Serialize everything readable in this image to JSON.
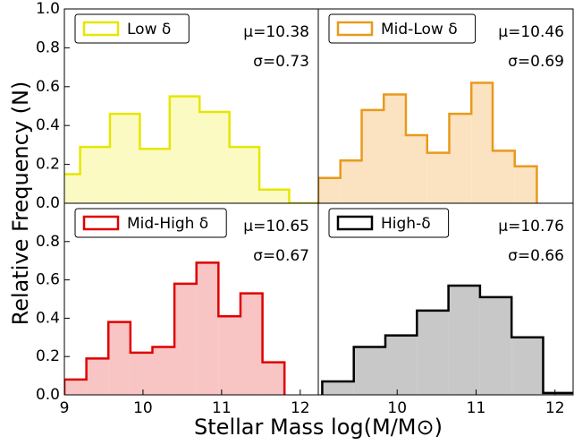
{
  "ylabel": "Relative Frequency (N)",
  "xlabel": "Stellar Mass log(M/M⊙)",
  "chart_data": [
    {
      "type": "histogram",
      "name": "Low δ",
      "color": "#e6e600",
      "fill": "#fafac2",
      "annotations": [
        "μ=10.38",
        "σ=0.73"
      ],
      "bins": [
        8.82,
        9.2,
        9.58,
        9.96,
        10.34,
        10.72,
        11.1,
        11.48,
        11.86,
        12.24
      ],
      "values": [
        0.15,
        0.29,
        0.46,
        0.28,
        0.55,
        0.47,
        0.29,
        0.07,
        0.0
      ],
      "xlim": [
        9,
        12.23
      ],
      "ylim": [
        0,
        1
      ],
      "yticks": [
        {
          "value": 0,
          "label": "0.0"
        },
        0.2,
        0.4,
        0.6,
        0.8,
        {
          "value": 1,
          "label": "1.0"
        }
      ]
    },
    {
      "type": "histogram",
      "name": "Mid-Low δ",
      "color": "#e89a1c",
      "fill": "#fbe2c0",
      "annotations": [
        "μ=10.46",
        "σ=0.69"
      ],
      "bins": [
        9.0,
        9.28,
        9.55,
        9.83,
        10.11,
        10.38,
        10.66,
        10.94,
        11.21,
        11.49,
        11.77
      ],
      "values": [
        0.13,
        0.22,
        0.48,
        0.56,
        0.35,
        0.26,
        0.46,
        0.62,
        0.27,
        0.19
      ],
      "xlim": [
        9,
        12.23
      ],
      "ylim": [
        0,
        1
      ]
    },
    {
      "type": "histogram",
      "name": "Mid-High δ",
      "color": "#e00000",
      "fill": "#f8c4c4",
      "annotations": [
        "μ=10.65",
        "σ=0.67"
      ],
      "bins": [
        9.0,
        9.28,
        9.56,
        9.84,
        10.12,
        10.4,
        10.68,
        10.96,
        11.24,
        11.52,
        11.8
      ],
      "values": [
        0.08,
        0.19,
        0.38,
        0.22,
        0.25,
        0.58,
        0.69,
        0.41,
        0.53,
        0.17
      ],
      "xlim": [
        9,
        12.23
      ],
      "ylim": [
        0,
        1
      ],
      "xticks": [
        9,
        10,
        11,
        12
      ],
      "yticks": [
        {
          "value": 0,
          "label": "0.0"
        },
        0.2,
        0.4,
        0.6,
        0.8
      ]
    },
    {
      "type": "histogram",
      "name": "High-δ",
      "color": "#000000",
      "fill": "#c8c8c8",
      "annotations": [
        "μ=10.76",
        "σ=0.66"
      ],
      "bins": [
        9.05,
        9.45,
        9.85,
        10.25,
        10.65,
        11.05,
        11.45,
        11.85,
        12.25
      ],
      "values": [
        0.07,
        0.25,
        0.31,
        0.44,
        0.57,
        0.51,
        0.3,
        0.01
      ],
      "xlim": [
        9,
        12.23
      ],
      "ylim": [
        0,
        1
      ],
      "xticks": [
        10,
        11,
        12
      ]
    }
  ]
}
